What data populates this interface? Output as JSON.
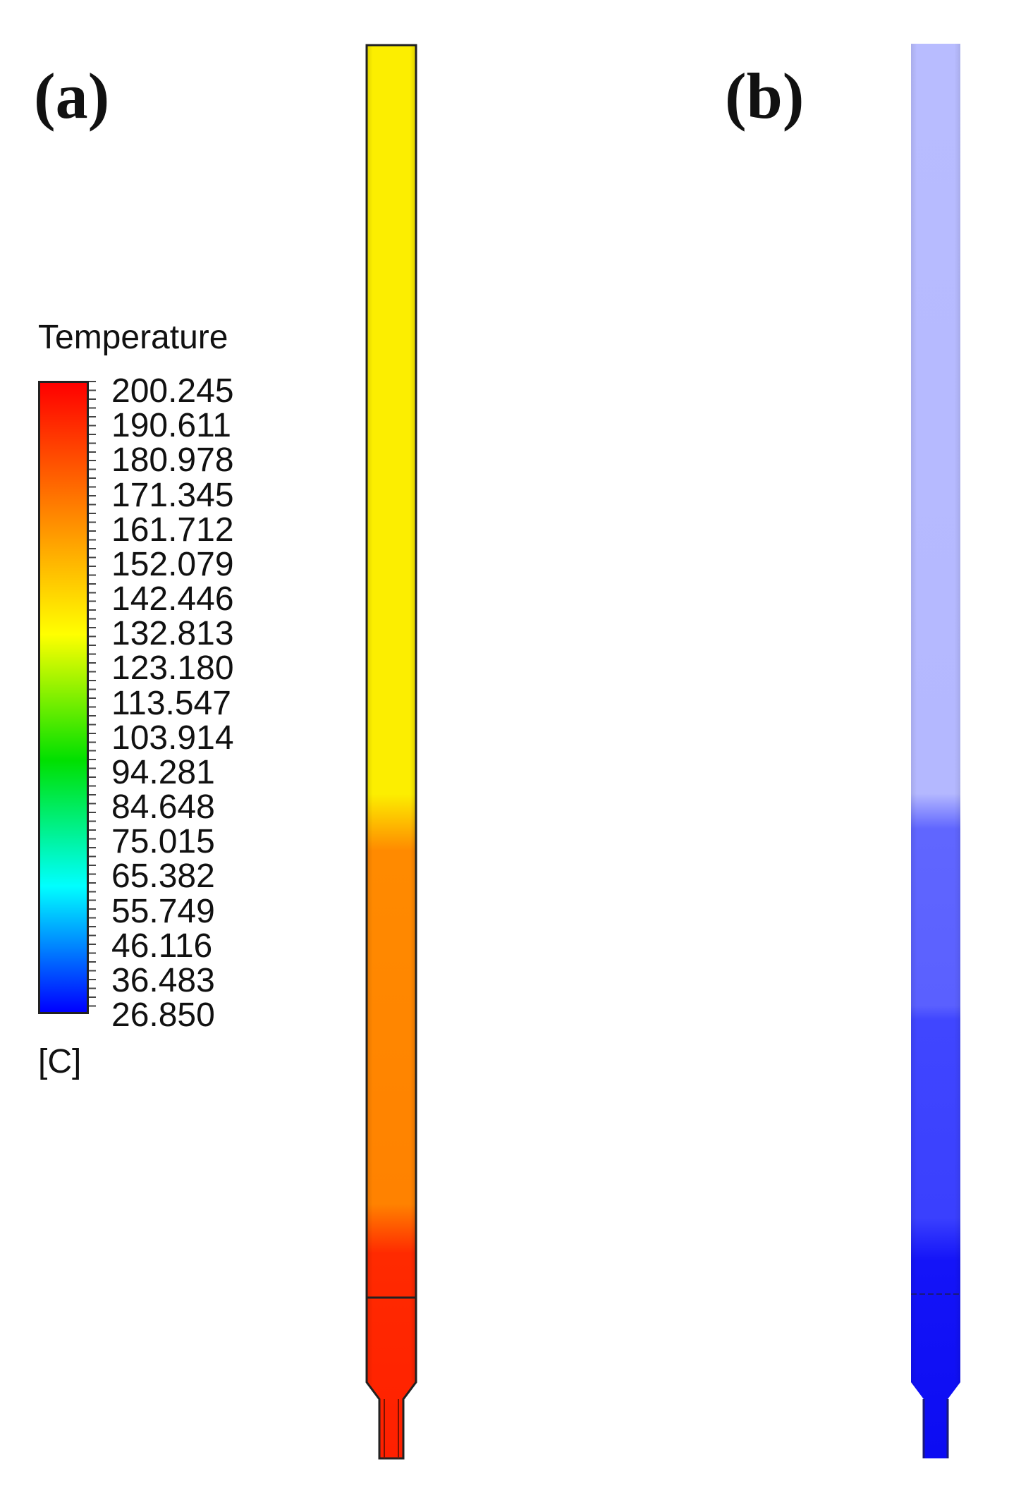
{
  "panels": [
    {
      "label": "(a)"
    },
    {
      "label": "(b)"
    }
  ],
  "legend": {
    "title": "Temperature",
    "unit": "[C]",
    "values": [
      "200.245",
      "190.611",
      "180.978",
      "171.345",
      "161.712",
      "152.079",
      "142.446",
      "132.813",
      "123.180",
      "113.547",
      "103.914",
      "94.281",
      "84.648",
      "75.015",
      "65.382",
      "55.749",
      "46.116",
      "36.483",
      "26.850"
    ],
    "color_stops": [
      "#ff0000",
      "#ff8000",
      "#ffff00",
      "#00e000",
      "#00ffff",
      "#0000ff"
    ]
  },
  "contour_a": {
    "colors": {
      "upper": "#fcee00",
      "middle": "#ff8a00",
      "lower": "#ff2200",
      "outline": "#222222"
    }
  },
  "contour_b": {
    "colors": {
      "upper": "#b8bcff",
      "middle": "#5c62ff",
      "lower": "#1010f6"
    }
  }
}
